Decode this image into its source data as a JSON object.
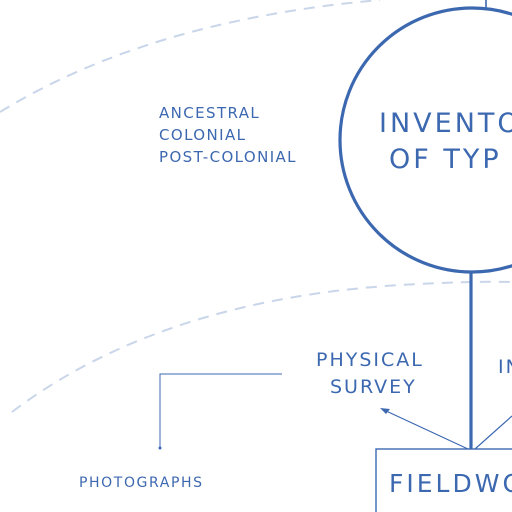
{
  "diagram": {
    "periods": [
      "Ancestral",
      "Colonial",
      "Post-colonial"
    ],
    "central_node": {
      "line1": "Invento",
      "line2": "of Typ"
    },
    "physical_survey": {
      "line1": "Physical",
      "line2": "Survey"
    },
    "partial_right_label": "In",
    "photographs": "Photographs",
    "fieldwork": "Fieldwor",
    "colors": {
      "ink": "#3c68b0",
      "dash": "#c9d6ea"
    }
  }
}
